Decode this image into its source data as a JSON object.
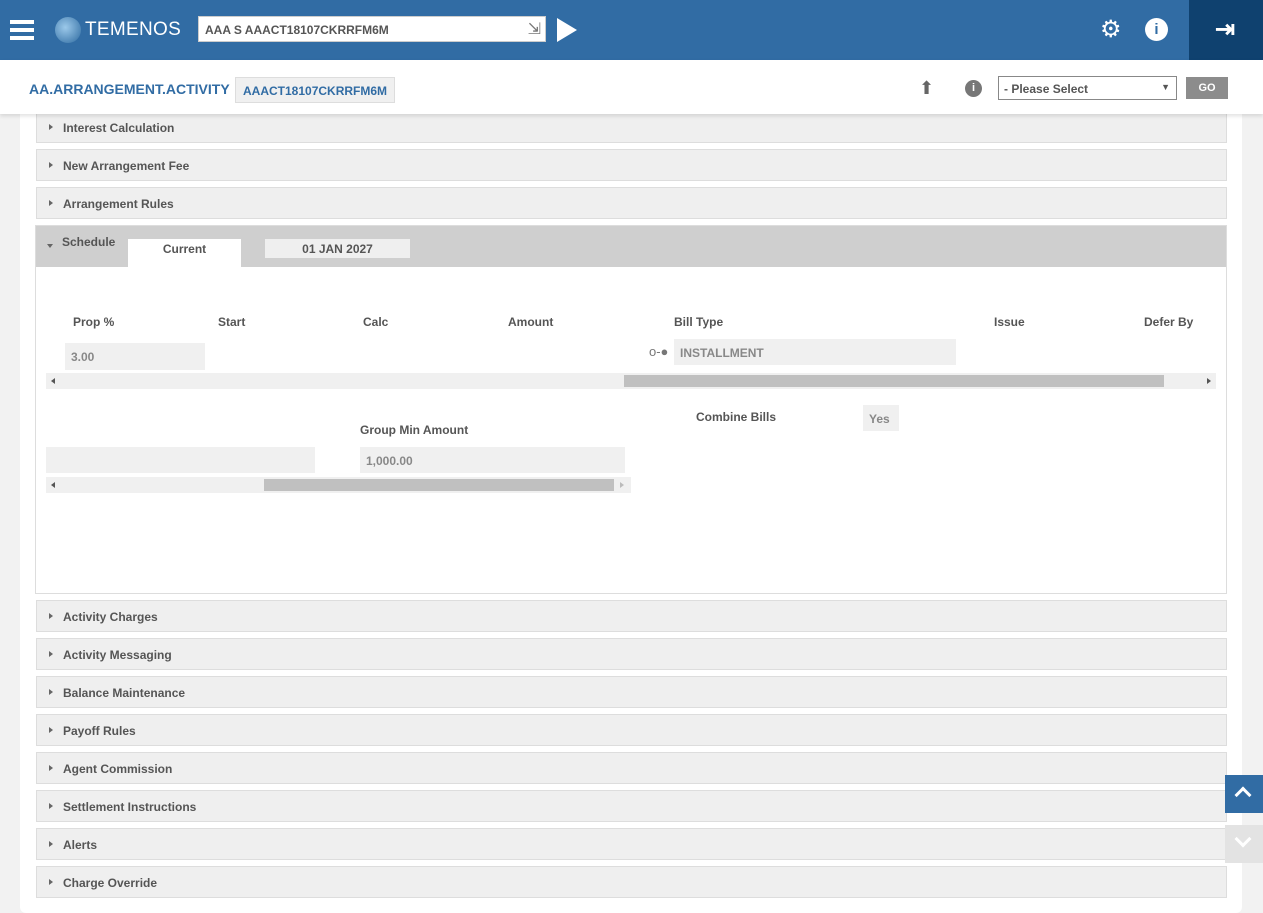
{
  "header": {
    "brand": "TEMENOS",
    "command_value": "AAA S AAACT18107CKRRFM6M"
  },
  "subheader": {
    "app": "AA.ARRANGEMENT.ACTIVITY",
    "record_id": "AAACT18107CKRRFM6M",
    "select_value": "- Please Select",
    "go_label": "GO"
  },
  "sections_top": [
    "Interest Calculation",
    "New Arrangement Fee",
    "Arrangement Rules"
  ],
  "schedule": {
    "title": "Schedule",
    "tabs": [
      "Current",
      "01 JAN 2027"
    ],
    "columns": [
      "Prop %",
      "Start",
      "Calc",
      "Amount",
      "Bill Type",
      "Issue",
      "Defer By"
    ],
    "prop_value": "3.00",
    "bill_type_value": "INSTALLMENT",
    "combine_bills_label": "Combine Bills",
    "combine_bills_value": "Yes",
    "group_min_label": "Group Min Amount",
    "group_min_value": "1,000.00"
  },
  "sections_bottom": [
    "Activity Charges",
    "Activity Messaging",
    "Balance Maintenance",
    "Payoff Rules",
    "Agent Commission",
    "Settlement Instructions",
    "Alerts",
    "Charge Override"
  ],
  "colors": {
    "header": "#316ca4",
    "logout": "#0f416f"
  }
}
